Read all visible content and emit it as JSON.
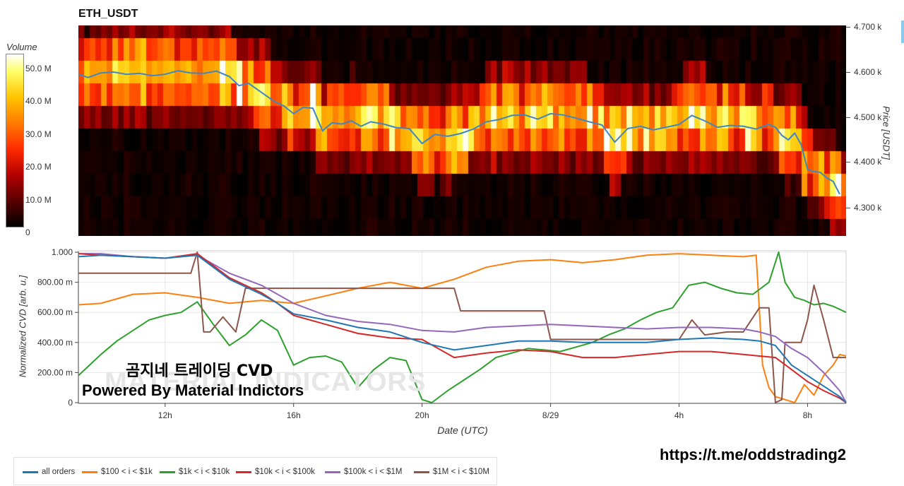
{
  "title": "ETH_USDT",
  "colorbar": {
    "label": "Volume",
    "ticks": [
      "50.0 M",
      "40.0 M",
      "30.0 M",
      "20.0 M",
      "10.0 M",
      "0"
    ],
    "tick_values": [
      50,
      40,
      30,
      20,
      10,
      0
    ]
  },
  "price_axis": {
    "label": "Price [USDT]",
    "ticks": [
      "4.700 k",
      "4.600 k",
      "4.500 k",
      "4.400 k",
      "4.300 k"
    ]
  },
  "cvd_axis": {
    "label": "Normalized CVD [arb. u.]",
    "ticks": [
      "1.000",
      "800.00 m",
      "600.00 m",
      "400.00 m",
      "200.00 m",
      "0"
    ]
  },
  "x_axis": {
    "label": "Date (UTC)",
    "ticks": [
      "12h",
      "16h",
      "20h",
      "8/29",
      "4h",
      "8h"
    ]
  },
  "watermark": {
    "line1": "곰지네 트레이딩 CVD",
    "line2": "Powered By Material Indictors",
    "ghost": "MATERIAL INDICATORS"
  },
  "link": "https://t.me/oddstrading2",
  "legend": [
    {
      "label": "all orders",
      "color": "#1f77b4"
    },
    {
      "label": "$100 < i < $1k",
      "color": "#ff7f0e"
    },
    {
      "label": "$1k < i < $10k",
      "color": "#2ca02c"
    },
    {
      "label": "$10k < i < $100k",
      "color": "#d62728"
    },
    {
      "label": "$100k < i < $1M",
      "color": "#9467bd"
    },
    {
      "label": "$1M < i < $10M",
      "color": "#8c564b"
    }
  ],
  "chart_data": [
    {
      "type": "heatmap",
      "title": "ETH_USDT",
      "xlabel": "",
      "ylabel": "Price [USDT]",
      "colorbar_label": "Volume",
      "colorbar_range": [
        0,
        50
      ],
      "colorbar_unit": "M",
      "ylim": [
        4240,
        4705
      ],
      "x_hours_range": [
        9.3,
        33.2
      ],
      "price_line": {
        "x": [
          9.3,
          9.6,
          10,
          10.4,
          10.8,
          11.2,
          11.6,
          12,
          12.4,
          12.8,
          13.2,
          13.6,
          14,
          14.3,
          14.6,
          15,
          15.2,
          15.4,
          15.7,
          16,
          16.3,
          16.6,
          16.9,
          17.2,
          17.5,
          17.8,
          18.1,
          18.4,
          18.8,
          19.2,
          19.6,
          20,
          20.4,
          20.8,
          21.2,
          21.6,
          22,
          22.4,
          22.8,
          23.2,
          23.6,
          24,
          24.4,
          24.8,
          25.2,
          25.6,
          26,
          26.4,
          26.8,
          27.2,
          27.6,
          28,
          28.4,
          28.8,
          29.2,
          29.6,
          30,
          30.4,
          30.8,
          31,
          31.2,
          31.4,
          31.6,
          31.8,
          32,
          32.2,
          32.4,
          32.6,
          32.8,
          33.0
        ],
        "y": [
          4595,
          4588,
          4598,
          4600,
          4595,
          4597,
          4592,
          4595,
          4603,
          4598,
          4597,
          4602,
          4590,
          4570,
          4575,
          4555,
          4545,
          4535,
          4525,
          4508,
          4522,
          4520,
          4470,
          4488,
          4485,
          4492,
          4480,
          4490,
          4485,
          4477,
          4475,
          4442,
          4462,
          4458,
          4464,
          4474,
          4490,
          4495,
          4504,
          4505,
          4496,
          4508,
          4505,
          4498,
          4490,
          4483,
          4445,
          4475,
          4480,
          4472,
          4478,
          4484,
          4504,
          4492,
          4478,
          4482,
          4480,
          4474,
          4484,
          4478,
          4460,
          4450,
          4465,
          4440,
          4385,
          4380,
          4378,
          4366,
          4358,
          4330
        ]
      }
    },
    {
      "type": "line",
      "xlabel": "Date (UTC)",
      "ylabel": "Normalized CVD [arb. u.]",
      "ylim": [
        0,
        1
      ],
      "x_hours_range": [
        9.3,
        33.2
      ],
      "x_ticks_hours": [
        12,
        16,
        20,
        24,
        28,
        32
      ],
      "x_tick_labels": [
        "12h",
        "16h",
        "20h",
        "8/29",
        "4h",
        "8h"
      ],
      "series": [
        {
          "name": "all orders",
          "x": [
            9.3,
            10,
            11,
            12,
            13,
            14,
            14.5,
            15,
            15.5,
            16,
            17,
            18,
            19,
            20,
            21,
            22,
            23,
            24,
            25,
            26,
            27,
            28,
            29,
            30,
            30.5,
            31,
            31.5,
            32,
            32.5,
            33,
            33.2
          ],
          "y": [
            0.97,
            0.98,
            0.97,
            0.96,
            0.98,
            0.82,
            0.77,
            0.72,
            0.66,
            0.59,
            0.55,
            0.5,
            0.47,
            0.4,
            0.35,
            0.38,
            0.41,
            0.41,
            0.4,
            0.4,
            0.4,
            0.42,
            0.43,
            0.42,
            0.41,
            0.38,
            0.25,
            0.18,
            0.11,
            0.04,
            0.0
          ]
        },
        {
          "name": "$100 < i < $1k",
          "x": [
            9.3,
            10,
            11,
            12,
            13,
            14,
            15,
            16,
            17,
            18,
            19,
            20,
            21,
            22,
            23,
            24,
            25,
            26,
            27,
            28,
            29,
            30,
            30.4,
            30.6,
            30.8,
            31.0,
            31.3,
            31.6,
            31.9,
            32.2,
            32.5,
            32.8,
            33.0,
            33.2
          ],
          "y": [
            0.65,
            0.66,
            0.72,
            0.73,
            0.7,
            0.66,
            0.68,
            0.66,
            0.71,
            0.76,
            0.8,
            0.76,
            0.82,
            0.9,
            0.94,
            0.95,
            0.93,
            0.95,
            0.98,
            0.99,
            0.98,
            0.97,
            0.98,
            0.25,
            0.1,
            0.04,
            0.02,
            0.0,
            0.12,
            0.05,
            0.18,
            0.25,
            0.32,
            0.31
          ]
        },
        {
          "name": "$1k < i < $10k",
          "x": [
            9.3,
            10,
            10.5,
            11,
            11.5,
            12,
            12.5,
            13,
            13.5,
            14,
            14.5,
            15,
            15.5,
            16,
            16.5,
            17,
            17.5,
            18,
            18.5,
            19,
            19.5,
            20,
            20.3,
            20.8,
            21.3,
            21.8,
            22.3,
            22.8,
            23.3,
            23.8,
            24.3,
            24.8,
            25.3,
            25.8,
            26.3,
            26.8,
            27.3,
            27.8,
            28.3,
            28.8,
            29.3,
            29.8,
            30.3,
            30.8,
            31.1,
            31.3,
            31.6,
            31.9,
            32.2,
            32.5,
            32.8,
            33.0,
            33.2
          ],
          "y": [
            0.18,
            0.32,
            0.41,
            0.48,
            0.55,
            0.58,
            0.6,
            0.67,
            0.52,
            0.38,
            0.45,
            0.55,
            0.48,
            0.25,
            0.3,
            0.31,
            0.27,
            0.1,
            0.22,
            0.3,
            0.28,
            0.02,
            0.0,
            0.08,
            0.15,
            0.22,
            0.3,
            0.33,
            0.36,
            0.35,
            0.34,
            0.37,
            0.4,
            0.45,
            0.49,
            0.55,
            0.6,
            0.63,
            0.78,
            0.8,
            0.76,
            0.73,
            0.72,
            0.8,
            1.0,
            0.8,
            0.7,
            0.68,
            0.65,
            0.66,
            0.64,
            0.62,
            0.6
          ]
        },
        {
          "name": "$10k < i < $100k",
          "x": [
            9.3,
            10,
            11,
            12,
            13,
            14,
            14.5,
            15,
            15.5,
            16,
            17,
            18,
            19,
            20,
            21,
            22,
            23,
            24,
            25,
            26,
            27,
            28,
            29,
            30,
            30.5,
            31,
            31.5,
            32,
            32.5,
            33,
            33.2
          ],
          "y": [
            0.99,
            0.98,
            0.97,
            0.96,
            0.99,
            0.83,
            0.78,
            0.73,
            0.66,
            0.58,
            0.52,
            0.46,
            0.43,
            0.42,
            0.3,
            0.33,
            0.35,
            0.34,
            0.3,
            0.3,
            0.32,
            0.34,
            0.34,
            0.32,
            0.31,
            0.3,
            0.22,
            0.14,
            0.08,
            0.03,
            0.0
          ]
        },
        {
          "name": "$100k < i < $1M",
          "x": [
            9.3,
            10,
            11,
            12,
            13,
            14,
            14.5,
            15,
            15.5,
            16,
            17,
            18,
            19,
            20,
            21,
            22,
            23,
            24,
            25,
            26,
            27,
            28,
            29,
            30,
            30.5,
            31,
            31.5,
            32,
            32.5,
            33,
            33.2
          ],
          "y": [
            0.99,
            0.99,
            0.97,
            0.96,
            0.98,
            0.86,
            0.82,
            0.78,
            0.72,
            0.66,
            0.58,
            0.54,
            0.52,
            0.48,
            0.47,
            0.5,
            0.51,
            0.52,
            0.51,
            0.5,
            0.49,
            0.5,
            0.5,
            0.49,
            0.47,
            0.44,
            0.36,
            0.3,
            0.2,
            0.08,
            0.0
          ]
        },
        {
          "name": "$1M < i < $10M",
          "x": [
            9.3,
            12.8,
            13.0,
            13.2,
            13.4,
            13.8,
            14.2,
            14.5,
            14.8,
            15.2,
            16,
            17,
            18,
            19,
            20,
            21,
            21.2,
            21.5,
            22,
            23,
            23.8,
            24.0,
            25,
            26,
            27,
            28,
            28.4,
            28.8,
            29.5,
            30,
            30.5,
            30.8,
            31,
            31.2,
            31.3,
            31.5,
            31.8,
            32,
            32.2,
            32.5,
            32.8,
            33.0,
            33.2
          ],
          "y": [
            0.86,
            0.86,
            1.0,
            0.47,
            0.47,
            0.57,
            0.47,
            0.76,
            0.76,
            0.76,
            0.76,
            0.76,
            0.76,
            0.76,
            0.76,
            0.76,
            0.61,
            0.61,
            0.61,
            0.61,
            0.61,
            0.42,
            0.42,
            0.42,
            0.42,
            0.42,
            0.55,
            0.45,
            0.47,
            0.47,
            0.63,
            0.63,
            0.0,
            0.02,
            0.4,
            0.4,
            0.4,
            0.55,
            0.78,
            0.55,
            0.3,
            0.3,
            0.3
          ]
        }
      ]
    }
  ]
}
